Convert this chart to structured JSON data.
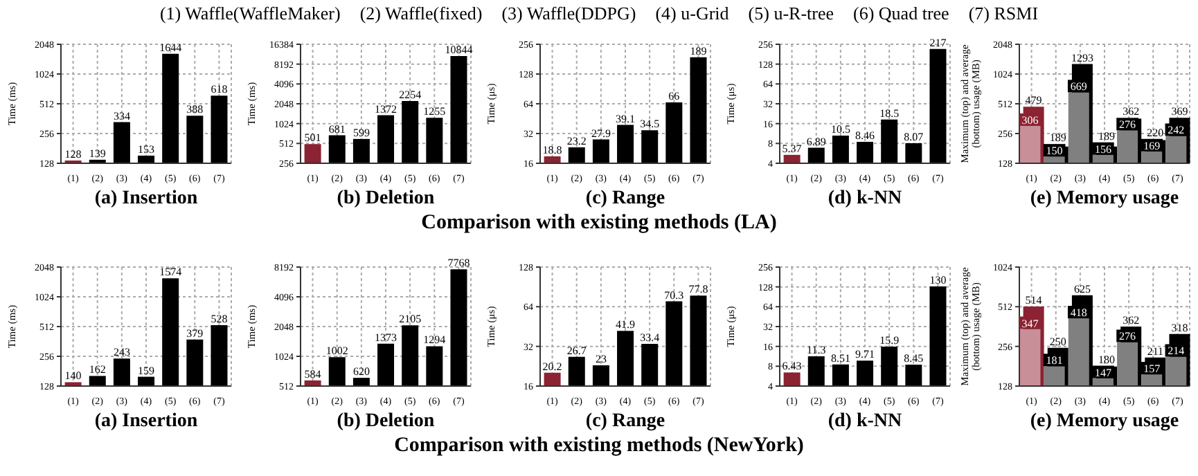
{
  "chart_data": [
    {
      "type": "bar",
      "title": "(a) Insertion",
      "ylabel": "Time (ms)",
      "annotations": [
        "(1) Waffle(WaffleMaker)",
        "(2) Waffle(fixed)",
        "(3) Waffle(DDPG)",
        "(4) u-Grid",
        "(5) u-R-tree",
        "(6) Quad tree",
        "(7) RSMI"
      ],
      "categories": [
        "(1)",
        "(2)",
        "(3)",
        "(4)",
        "(5)",
        "(6)",
        "(7)"
      ],
      "values": [
        128,
        139,
        334,
        153,
        1644,
        388,
        618
      ],
      "colors": [
        "#8b2332",
        "#000000",
        "#000000",
        "#000000",
        "#000000",
        "#000000",
        "#000000"
      ],
      "ylim": [
        128,
        2048
      ],
      "yticks": [
        128,
        256,
        512,
        1024,
        2048
      ],
      "log": true,
      "grid": true,
      "data_labels": true
    },
    {
      "type": "bar",
      "title": "(b) Deletion",
      "ylabel": "Time (ms)",
      "categories": [
        "(1)",
        "(2)",
        "(3)",
        "(4)",
        "(5)",
        "(6)",
        "(7)"
      ],
      "values": [
        501,
        681,
        599,
        1372,
        2254,
        1255,
        10844
      ],
      "colors": [
        "#8b2332",
        "#000000",
        "#000000",
        "#000000",
        "#000000",
        "#000000",
        "#000000"
      ],
      "ylim": [
        256,
        16384
      ],
      "yticks": [
        256,
        512,
        1024,
        2048,
        4096,
        8192,
        16384
      ],
      "log": true,
      "grid": true,
      "data_labels": true
    },
    {
      "type": "bar",
      "title": "(c) Range",
      "ylabel": "Time (μs)",
      "categories": [
        "(1)",
        "(2)",
        "(3)",
        "(4)",
        "(5)",
        "(6)",
        "(7)"
      ],
      "values": [
        18.8,
        23.2,
        27.9,
        39.1,
        34.5,
        66,
        189
      ],
      "colors": [
        "#8b2332",
        "#000000",
        "#000000",
        "#000000",
        "#000000",
        "#000000",
        "#000000"
      ],
      "ylim": [
        16,
        256
      ],
      "yticks": [
        16,
        32,
        64,
        128,
        256
      ],
      "log": true,
      "grid": true,
      "data_labels": true
    },
    {
      "type": "bar",
      "title": "(d) k-NN",
      "ylabel": "Time (μs)",
      "categories": [
        "(1)",
        "(2)",
        "(3)",
        "(4)",
        "(5)",
        "(6)",
        "(7)"
      ],
      "values": [
        5.37,
        6.89,
        10.5,
        8.46,
        18.5,
        8.07,
        217
      ],
      "colors": [
        "#8b2332",
        "#000000",
        "#000000",
        "#000000",
        "#000000",
        "#000000",
        "#000000"
      ],
      "ylim": [
        4,
        256
      ],
      "yticks": [
        4,
        8,
        16,
        32,
        64,
        128,
        256
      ],
      "log": true,
      "grid": true,
      "data_labels": true
    },
    {
      "type": "bar",
      "title": "(e) Memory usage",
      "ylabel": "Maximum (top) and average (bottom) usage (MB)",
      "annotations": [
        "Comparison with existing methods (LA)"
      ],
      "categories": [
        "(1)",
        "(2)",
        "(3)",
        "(4)",
        "(5)",
        "(6)",
        "(7)"
      ],
      "series": [
        {
          "values": [
            479,
            189,
            1293,
            189,
            362,
            220,
            369
          ],
          "colors": [
            "#8b2332",
            "#000000",
            "#000000",
            "#000000",
            "#000000",
            "#000000",
            "#000000"
          ]
        },
        {
          "values": [
            306,
            150,
            669,
            156,
            276,
            169,
            242
          ],
          "colors": [
            "#c98f98",
            "#808080",
            "#808080",
            "#808080",
            "#808080",
            "#808080",
            "#808080"
          ]
        }
      ],
      "ylim": [
        128,
        2048
      ],
      "yticks": [
        128,
        256,
        512,
        1024,
        2048
      ],
      "log": true,
      "grid": true,
      "data_labels": true
    },
    {
      "type": "bar",
      "title": "(a) Insertion",
      "ylabel": "Time (ms)",
      "categories": [
        "(1)",
        "(2)",
        "(3)",
        "(4)",
        "(5)",
        "(6)",
        "(7)"
      ],
      "values": [
        140,
        162,
        243,
        159,
        1574,
        379,
        528
      ],
      "colors": [
        "#8b2332",
        "#000000",
        "#000000",
        "#000000",
        "#000000",
        "#000000",
        "#000000"
      ],
      "ylim": [
        128,
        2048
      ],
      "yticks": [
        128,
        256,
        512,
        1024,
        2048
      ],
      "log": true,
      "grid": true,
      "data_labels": true
    },
    {
      "type": "bar",
      "title": "(b) Deletion",
      "ylabel": "Time (ms)",
      "categories": [
        "(1)",
        "(2)",
        "(3)",
        "(4)",
        "(5)",
        "(6)",
        "(7)"
      ],
      "values": [
        584,
        1002,
        620,
        1373,
        2105,
        1294,
        7768
      ],
      "colors": [
        "#8b2332",
        "#000000",
        "#000000",
        "#000000",
        "#000000",
        "#000000",
        "#000000"
      ],
      "ylim": [
        512,
        8192
      ],
      "yticks": [
        512,
        1024,
        2048,
        4096,
        8192
      ],
      "log": true,
      "grid": true,
      "data_labels": true
    },
    {
      "type": "bar",
      "title": "(c) Range",
      "ylabel": "Time (μs)",
      "categories": [
        "(1)",
        "(2)",
        "(3)",
        "(4)",
        "(5)",
        "(6)",
        "(7)"
      ],
      "values": [
        20.2,
        26.7,
        23,
        41.9,
        33.4,
        70.3,
        77.8
      ],
      "colors": [
        "#8b2332",
        "#000000",
        "#000000",
        "#000000",
        "#000000",
        "#000000",
        "#000000"
      ],
      "ylim": [
        16,
        128
      ],
      "yticks": [
        16,
        32,
        64,
        128
      ],
      "log": true,
      "grid": true,
      "data_labels": true
    },
    {
      "type": "bar",
      "title": "(d) k-NN",
      "ylabel": "Time (μs)",
      "categories": [
        "(1)",
        "(2)",
        "(3)",
        "(4)",
        "(5)",
        "(6)",
        "(7)"
      ],
      "values": [
        6.43,
        11.3,
        8.51,
        9.71,
        15.9,
        8.45,
        130
      ],
      "colors": [
        "#8b2332",
        "#000000",
        "#000000",
        "#000000",
        "#000000",
        "#000000",
        "#000000"
      ],
      "ylim": [
        4,
        256
      ],
      "yticks": [
        4,
        8,
        16,
        32,
        64,
        128,
        256
      ],
      "log": true,
      "grid": true,
      "data_labels": true
    },
    {
      "type": "bar",
      "title": "(e) Memory usage",
      "ylabel": "Maximum (top) and average (bottom) usage (MB)",
      "annotations": [
        "Comparison with existing methods (NewYork)"
      ],
      "categories": [
        "(1)",
        "(2)",
        "(3)",
        "(4)",
        "(5)",
        "(6)",
        "(7)"
      ],
      "series": [
        {
          "values": [
            514,
            250,
            625,
            180,
            362,
            211,
            318
          ],
          "colors": [
            "#8b2332",
            "#000000",
            "#000000",
            "#000000",
            "#000000",
            "#000000",
            "#000000"
          ]
        },
        {
          "values": [
            347,
            181,
            418,
            147,
            276,
            157,
            214
          ],
          "colors": [
            "#c98f98",
            "#808080",
            "#808080",
            "#808080",
            "#808080",
            "#808080",
            "#808080"
          ]
        }
      ],
      "ylim": [
        128,
        1024
      ],
      "yticks": [
        128,
        256,
        512,
        1024
      ],
      "log": true,
      "grid": true,
      "data_labels": true
    }
  ]
}
